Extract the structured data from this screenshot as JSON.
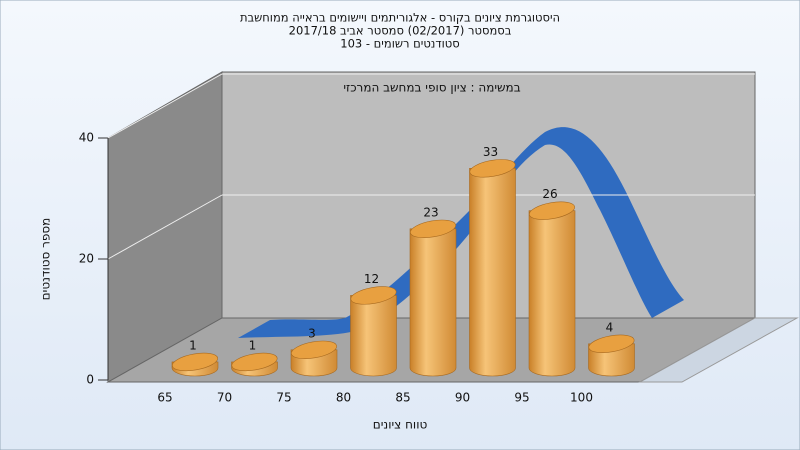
{
  "chart_data": {
    "type": "bar",
    "title_lines": [
      "היסטוגרמת ציונים בקורס - אלגוריתמים ויישומים בראייה ממוחשבת",
      "בסמסטר  (02/2017)  סמסטר אביב 2017/18",
      "סטודנטים רשומים - 103"
    ],
    "subtitle": "במשימה : ציון סופי במחשב המרכזי",
    "x_label": "טווח ציונים",
    "y_label": "מספר סטודנטים",
    "categories": [
      "65",
      "70",
      "75",
      "80",
      "85",
      "90",
      "95",
      "100"
    ],
    "values": [
      1,
      1,
      3,
      12,
      23,
      33,
      26,
      4
    ],
    "color": "#e8a040",
    "ylim": [
      0,
      40
    ],
    "yticks": [
      0,
      20,
      40
    ],
    "grid": true
  }
}
